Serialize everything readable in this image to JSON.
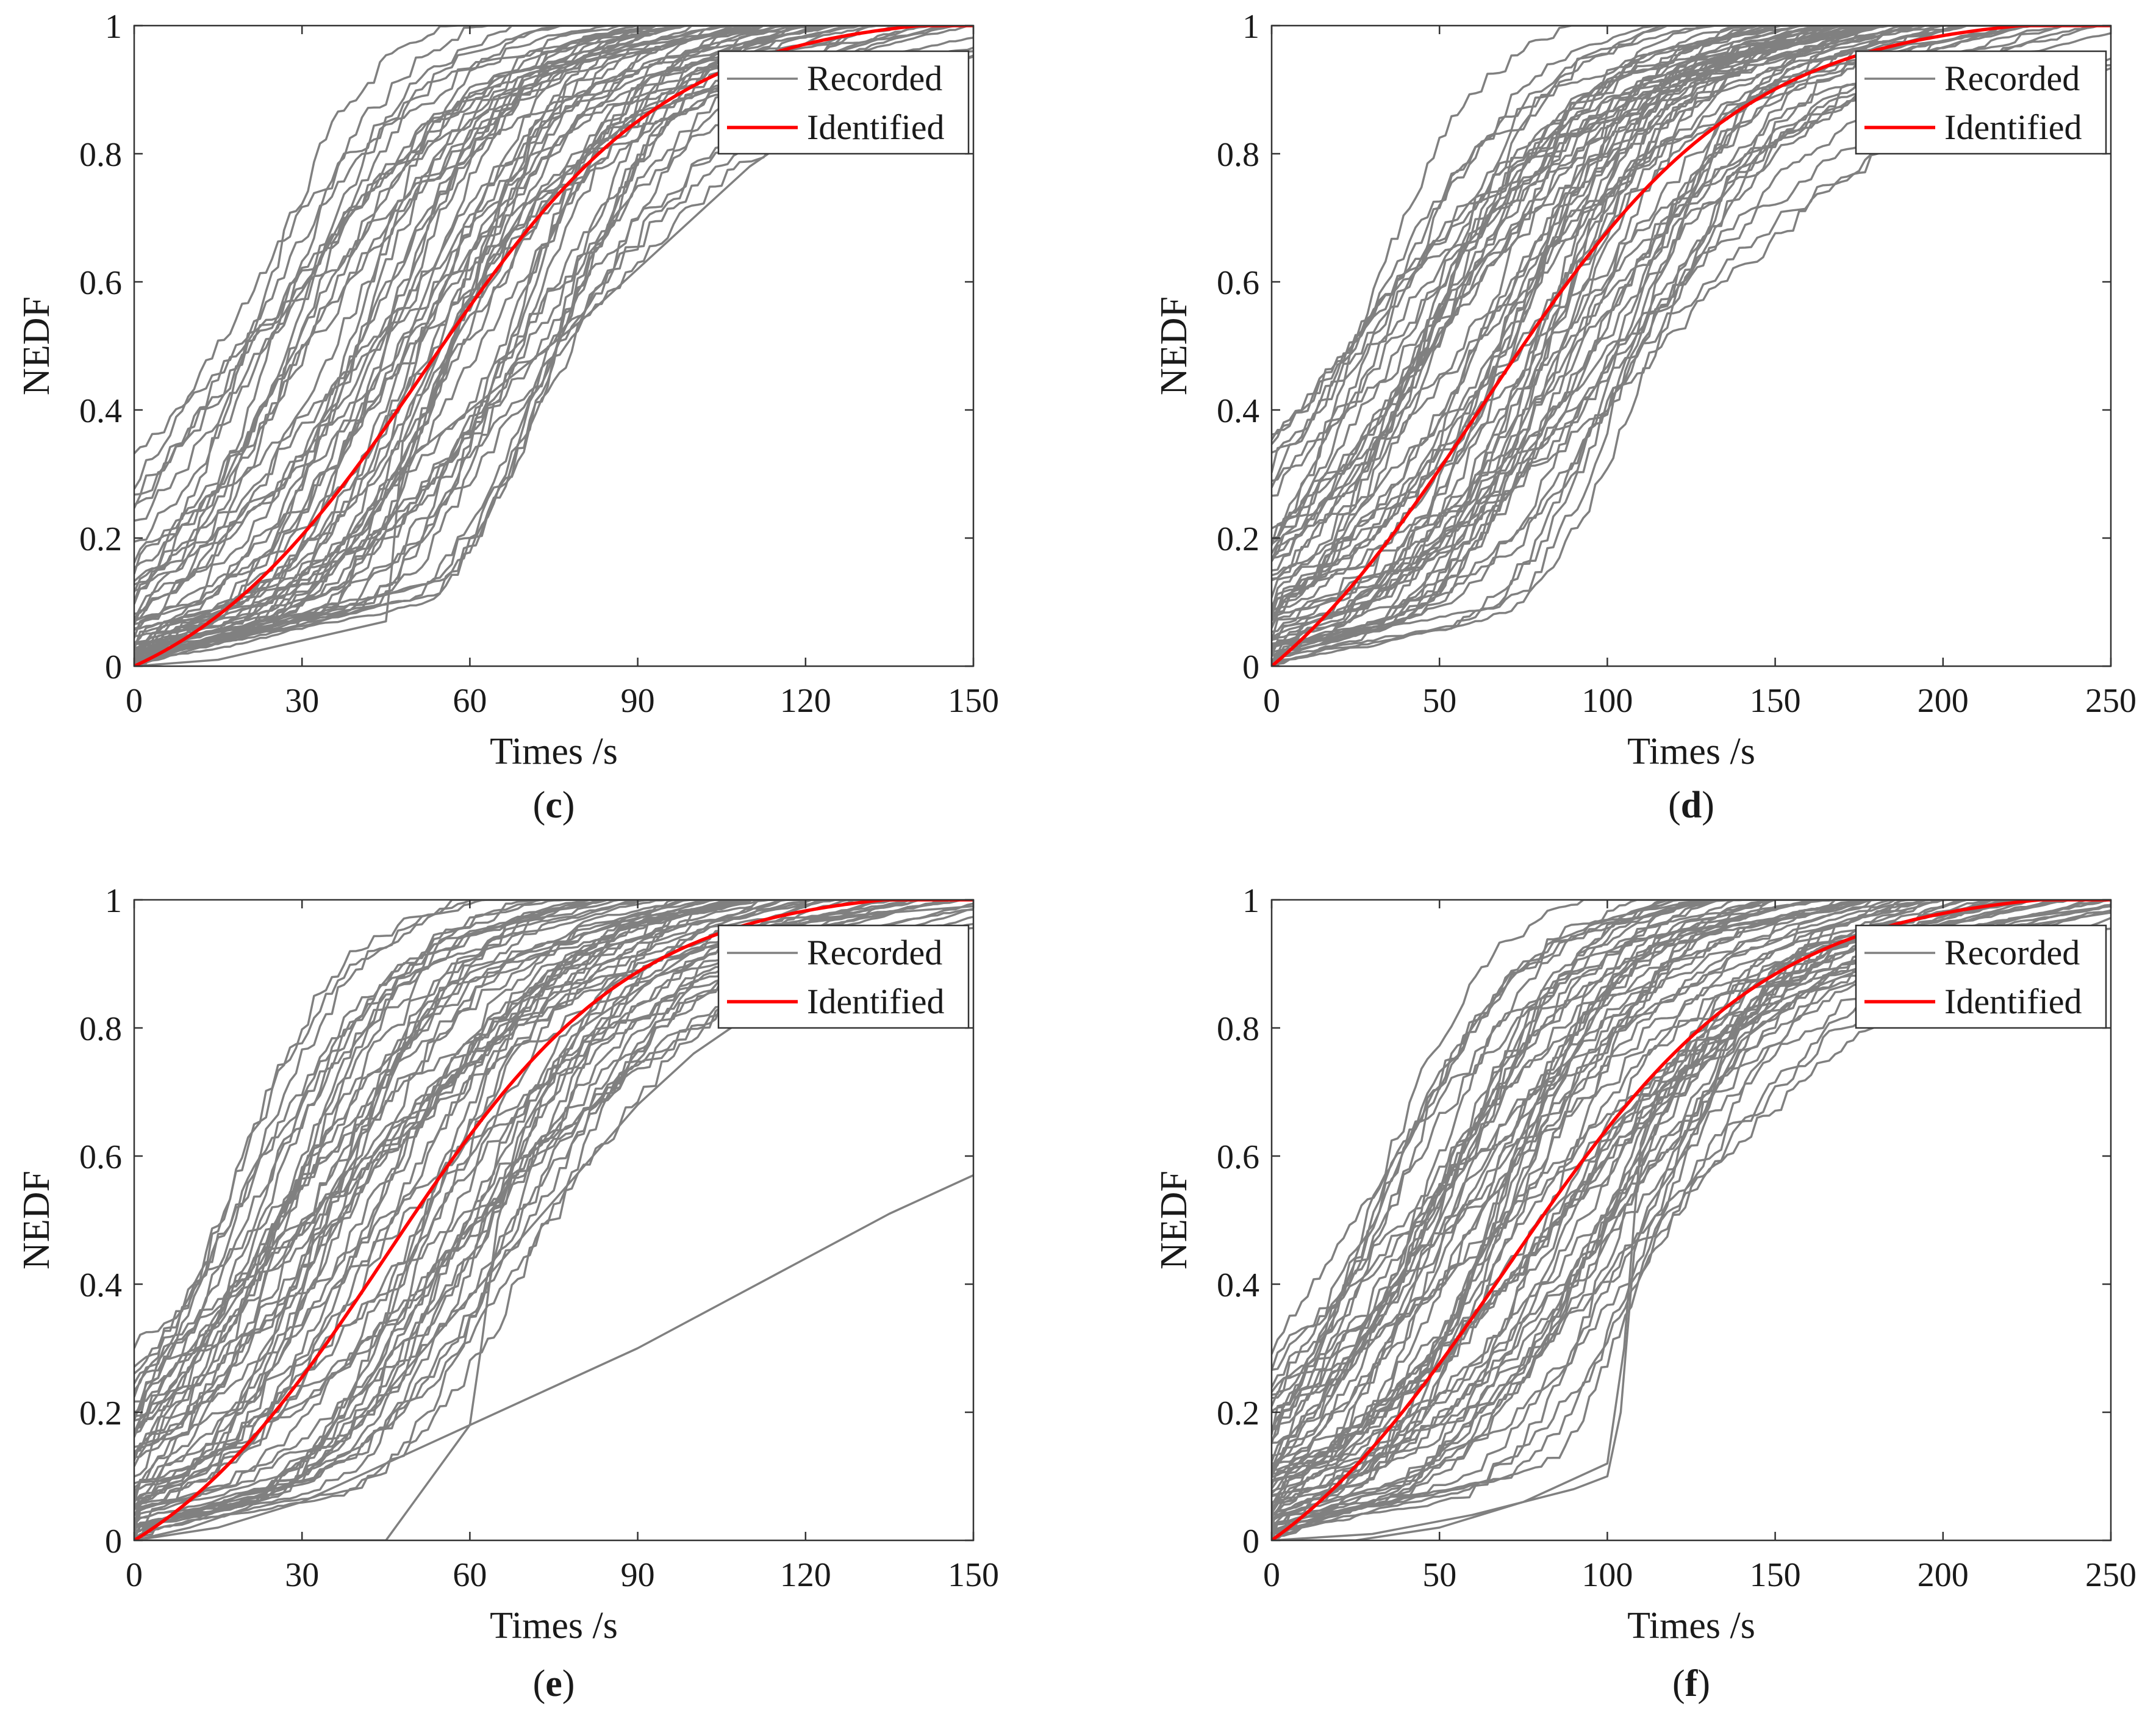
{
  "colors": {
    "recorded": "#808080",
    "identified": "#ff0000",
    "axis": "#333333"
  },
  "chart_data": [
    {
      "id": "c",
      "type": "line",
      "caption": "c",
      "xlabel": "Times /s",
      "ylabel": "NEDF",
      "xlim": [
        0,
        150
      ],
      "ylim": [
        0,
        1
      ],
      "xticks": [
        0,
        30,
        60,
        90,
        120,
        150
      ],
      "yticks": [
        0,
        0.2,
        0.4,
        0.6,
        0.8,
        1
      ],
      "legend": {
        "position": "top-right",
        "entries": [
          "Recorded",
          "Identified"
        ]
      },
      "identified": {
        "name": "Identified",
        "midpoint": 52,
        "steepness": 1.7,
        "scale": 1.02
      },
      "recorded": {
        "name": "Recorded",
        "count": 60,
        "seed": 11,
        "mid_range": [
          15,
          78
        ],
        "steep_range": [
          1.3,
          4.0
        ]
      },
      "recorded_extra": [
        {
          "name": "Recorded",
          "x": [
            0,
            10,
            20,
            30,
            40,
            50,
            60,
            70,
            80,
            90,
            100,
            110,
            120
          ],
          "y": [
            0,
            0.03,
            0.06,
            0.1,
            0.2,
            0.33,
            0.4,
            0.47,
            0.54,
            0.62,
            0.7,
            0.78,
            0.84
          ]
        },
        {
          "name": "Recorded",
          "x": [
            0,
            15,
            30,
            45,
            46,
            48,
            55,
            70,
            90,
            110,
            130,
            150
          ],
          "y": [
            0,
            0.01,
            0.04,
            0.07,
            0.15,
            0.35,
            0.5,
            0.72,
            0.86,
            0.92,
            0.95,
            0.96
          ]
        }
      ]
    },
    {
      "id": "d",
      "type": "line",
      "caption": "d",
      "xlabel": "Times /s",
      "ylabel": "NEDF",
      "xlim": [
        0,
        250
      ],
      "ylim": [
        0,
        1
      ],
      "xticks": [
        0,
        50,
        100,
        150,
        200,
        250
      ],
      "yticks": [
        0,
        0.2,
        0.4,
        0.6,
        0.8,
        1
      ],
      "legend": {
        "position": "top-right",
        "entries": [
          "Recorded",
          "Identified"
        ]
      },
      "identified": {
        "name": "Identified",
        "midpoint": 63,
        "steepness": 1.6,
        "scale": 1.02
      },
      "recorded": {
        "name": "Recorded",
        "count": 65,
        "seed": 23,
        "mid_range": [
          22,
          115
        ],
        "steep_range": [
          1.2,
          3.8
        ]
      },
      "recorded_extra": []
    },
    {
      "id": "e",
      "type": "line",
      "caption": "e",
      "xlabel": "Times /s",
      "ylabel": "NEDF",
      "xlim": [
        0,
        150
      ],
      "ylim": [
        0,
        1
      ],
      "xticks": [
        0,
        30,
        60,
        90,
        120,
        150
      ],
      "yticks": [
        0,
        0.2,
        0.4,
        0.6,
        0.8,
        1
      ],
      "legend": {
        "position": "top-right",
        "entries": [
          "Recorded",
          "Identified"
        ]
      },
      "identified": {
        "name": "Identified",
        "midpoint": 45,
        "steepness": 1.7,
        "scale": 1.02
      },
      "recorded": {
        "name": "Recorded",
        "count": 60,
        "seed": 37,
        "mid_range": [
          15,
          75
        ],
        "steep_range": [
          1.2,
          3.6
        ]
      },
      "recorded_extra": [
        {
          "name": "Recorded",
          "x": [
            0,
            10,
            20,
            30,
            40,
            50,
            60,
            70,
            80,
            90,
            100,
            110,
            120
          ],
          "y": [
            0,
            0.02,
            0.05,
            0.1,
            0.18,
            0.28,
            0.38,
            0.48,
            0.58,
            0.68,
            0.76,
            0.82,
            0.86
          ]
        },
        {
          "name": "Recorded",
          "x": [
            0,
            15,
            30,
            45,
            60,
            75,
            90,
            105,
            120,
            135,
            150
          ],
          "y": [
            0,
            0.02,
            0.06,
            0.12,
            0.18,
            0.24,
            0.3,
            0.37,
            0.44,
            0.51,
            0.57
          ]
        },
        {
          "name": "Recorded",
          "x": [
            0,
            20,
            40,
            45,
            50,
            55,
            60,
            62,
            65,
            70,
            80,
            100,
            120,
            150
          ],
          "y": [
            0,
            0,
            0,
            0,
            0.06,
            0.12,
            0.18,
            0.3,
            0.5,
            0.65,
            0.8,
            0.92,
            0.97,
            0.99
          ]
        }
      ]
    },
    {
      "id": "f",
      "type": "line",
      "caption": "f",
      "xlabel": "Times /s",
      "ylabel": "NEDF",
      "xlim": [
        0,
        250
      ],
      "ylim": [
        0,
        1
      ],
      "xticks": [
        0,
        50,
        100,
        150,
        200,
        250
      ],
      "yticks": [
        0,
        0.2,
        0.4,
        0.6,
        0.8,
        1
      ],
      "legend": {
        "position": "top-right",
        "entries": [
          "Recorded",
          "Identified"
        ]
      },
      "identified": {
        "name": "Identified",
        "midpoint": 70,
        "steepness": 1.6,
        "scale": 1.02
      },
      "recorded": {
        "name": "Recorded",
        "count": 65,
        "seed": 51,
        "mid_range": [
          25,
          120
        ],
        "steep_range": [
          1.2,
          3.8
        ]
      },
      "recorded_extra": [
        {
          "name": "Recorded",
          "x": [
            0,
            25,
            50,
            75,
            100,
            105,
            108,
            110,
            115,
            125,
            150,
            200,
            250
          ],
          "y": [
            0,
            0,
            0.02,
            0.06,
            0.12,
            0.3,
            0.5,
            0.62,
            0.7,
            0.74,
            0.84,
            0.94,
            0.98
          ]
        },
        {
          "name": "Recorded",
          "x": [
            0,
            30,
            60,
            90,
            100,
            104,
            108,
            112,
            120,
            140,
            170,
            220,
            250
          ],
          "y": [
            0,
            0.01,
            0.04,
            0.08,
            0.1,
            0.2,
            0.45,
            0.52,
            0.58,
            0.78,
            0.9,
            0.97,
            0.99
          ]
        }
      ]
    }
  ]
}
